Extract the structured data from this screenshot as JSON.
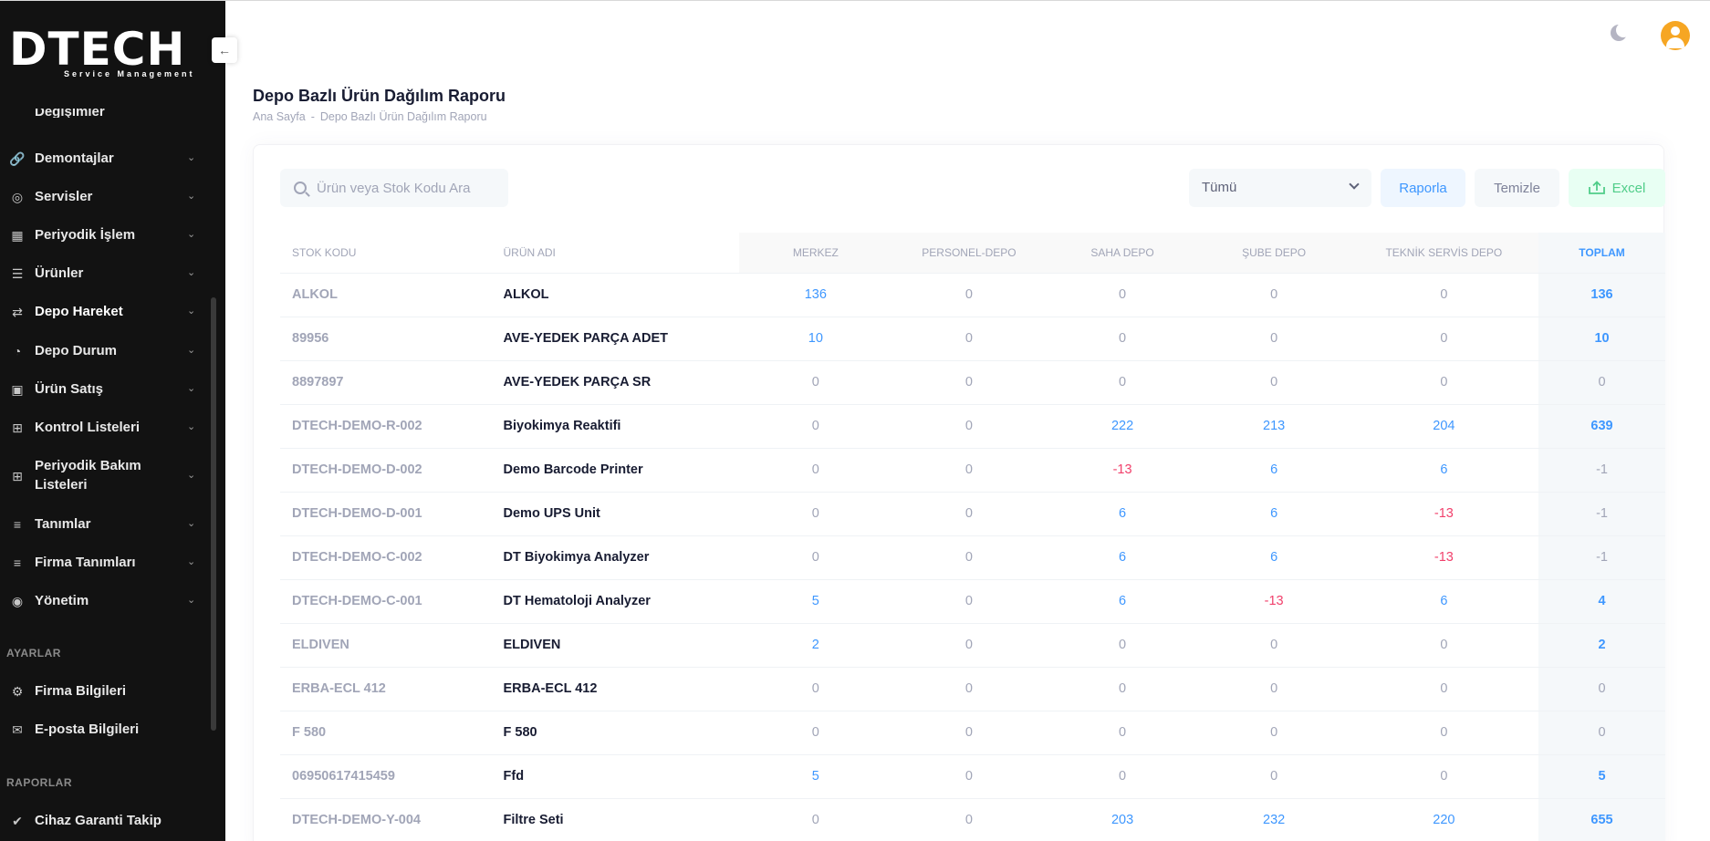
{
  "brand": {
    "logo_text": "DTECH",
    "logo_sub": "Service Management"
  },
  "sidebar": {
    "cut_item": "Değişimler",
    "items": [
      {
        "label": "Demontajlar",
        "icon": "link-icon"
      },
      {
        "label": "Servisler",
        "icon": "lifebuoy-icon"
      },
      {
        "label": "Periyodik İşlem",
        "icon": "calendar-icon"
      },
      {
        "label": "Ürünler",
        "icon": "list-icon"
      },
      {
        "label": "Depo Hareket",
        "icon": "arrows-icon",
        "active": true
      },
      {
        "label": "Depo Durum",
        "icon": "pie-icon"
      },
      {
        "label": "Ürün Satış",
        "icon": "basket-icon"
      },
      {
        "label": "Kontrol Listeleri",
        "icon": "grid-plus-icon"
      },
      {
        "label": "Periyodik Bakım Listeleri",
        "icon": "grid-plus-icon"
      },
      {
        "label": "Tanımlar",
        "icon": "menu-icon"
      },
      {
        "label": "Firma Tanımları",
        "icon": "menu-icon"
      },
      {
        "label": "Yönetim",
        "icon": "user-icon"
      }
    ],
    "section_ayarlar": "AYARLAR",
    "ayarlar_items": [
      {
        "label": "Firma Bilgileri",
        "icon": "gear-icon"
      },
      {
        "label": "E-posta Bilgileri",
        "icon": "mail-icon"
      }
    ],
    "section_raporlar": "RAPORLAR",
    "raporlar_items": [
      {
        "label": "Cihaz Garanti Takip",
        "icon": "shield-check-icon"
      }
    ]
  },
  "header": {
    "title": "Depo Bazlı Ürün Dağılım Raporu",
    "breadcrumb": [
      "Ana Sayfa",
      "-",
      "Depo Bazlı Ürün Dağılım Raporu"
    ]
  },
  "toolbar": {
    "search_placeholder": "Ürün veya Stok Kodu Ara",
    "select_value": "Tümü",
    "rapor_label": "Raporla",
    "temizle_label": "Temizle",
    "excel_label": "Excel"
  },
  "table": {
    "headers": [
      "STOK KODU",
      "ÜRÜN ADI",
      "MERKEZ",
      "PERSONEL-DEPO",
      "SAHA DEPO",
      "ŞUBE DEPO",
      "TEKNİK SERVİS DEPO",
      "TOPLAM"
    ],
    "rows": [
      {
        "code": "ALKOL",
        "name": "ALKOL",
        "values": [
          "136",
          "0",
          "0",
          "0",
          "0"
        ],
        "total": "136"
      },
      {
        "code": "89956",
        "name": "AVE-YEDEK PARÇA ADET",
        "values": [
          "10",
          "0",
          "0",
          "0",
          "0"
        ],
        "total": "10"
      },
      {
        "code": "8897897",
        "name": "AVE-YEDEK PARÇA SR",
        "values": [
          "0",
          "0",
          "0",
          "0",
          "0"
        ],
        "total": "0"
      },
      {
        "code": "DTECH-DEMO-R-002",
        "name": "Biyokimya Reaktifi",
        "values": [
          "0",
          "0",
          "222",
          "213",
          "204"
        ],
        "total": "639"
      },
      {
        "code": "DTECH-DEMO-D-002",
        "name": "Demo Barcode Printer",
        "values": [
          "0",
          "0",
          "-13",
          "6",
          "6"
        ],
        "total": "-1"
      },
      {
        "code": "DTECH-DEMO-D-001",
        "name": "Demo UPS Unit",
        "values": [
          "0",
          "0",
          "6",
          "6",
          "-13"
        ],
        "total": "-1"
      },
      {
        "code": "DTECH-DEMO-C-002",
        "name": "DT Biyokimya Analyzer",
        "values": [
          "0",
          "0",
          "6",
          "6",
          "-13"
        ],
        "total": "-1"
      },
      {
        "code": "DTECH-DEMO-C-001",
        "name": "DT Hematoloji Analyzer",
        "values": [
          "5",
          "0",
          "6",
          "-13",
          "6"
        ],
        "total": "4"
      },
      {
        "code": "ELDIVEN",
        "name": "ELDIVEN",
        "values": [
          "2",
          "0",
          "0",
          "0",
          "0"
        ],
        "total": "2"
      },
      {
        "code": "ERBA-ECL 412",
        "name": "ERBA-ECL 412",
        "values": [
          "0",
          "0",
          "0",
          "0",
          "0"
        ],
        "total": "0"
      },
      {
        "code": "F 580",
        "name": "F 580",
        "values": [
          "0",
          "0",
          "0",
          "0",
          "0"
        ],
        "total": "0"
      },
      {
        "code": "06950617415459",
        "name": "Ffd",
        "values": [
          "5",
          "0",
          "0",
          "0",
          "0"
        ],
        "total": "5"
      },
      {
        "code": "DTECH-DEMO-Y-004",
        "name": "Filtre Seti",
        "values": [
          "0",
          "0",
          "203",
          "232",
          "220"
        ],
        "total": "655"
      }
    ]
  },
  "colors": {
    "accent": "#3e97ff",
    "negative": "#f1416c",
    "success": "#50cd89",
    "avatar": "#f6a623"
  }
}
